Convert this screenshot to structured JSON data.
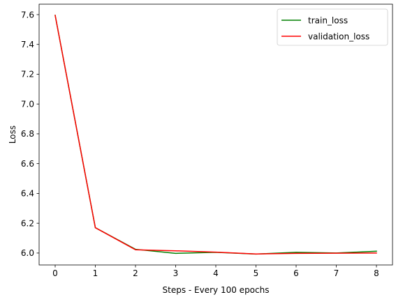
{
  "chart_data": {
    "type": "line",
    "title": "",
    "xlabel": "Steps - Every 100 epochs",
    "ylabel": "Loss",
    "x": [
      0,
      1,
      2,
      3,
      4,
      5,
      6,
      7,
      8
    ],
    "xlim": [
      -0.4,
      8.4
    ],
    "ylim": [
      5.92,
      7.67
    ],
    "xticks": [
      0,
      1,
      2,
      3,
      4,
      5,
      6,
      7,
      8
    ],
    "yticks": [
      6.0,
      6.2,
      6.4,
      6.6,
      6.8,
      7.0,
      7.2,
      7.4,
      7.6
    ],
    "ytick_labels": [
      "6.0",
      "6.2",
      "6.4",
      "6.6",
      "6.8",
      "7.0",
      "7.2",
      "7.4",
      "7.6"
    ],
    "grid": false,
    "legend_position": "top-right",
    "series": [
      {
        "name": "train_loss",
        "color": "#008000",
        "values": [
          7.595,
          6.17,
          6.025,
          5.998,
          6.005,
          5.993,
          6.005,
          6.0,
          6.012
        ]
      },
      {
        "name": "validation_loss",
        "color": "#ff0000",
        "values": [
          7.595,
          6.17,
          6.022,
          6.015,
          6.006,
          5.994,
          5.998,
          5.999,
          6.0
        ]
      }
    ]
  }
}
